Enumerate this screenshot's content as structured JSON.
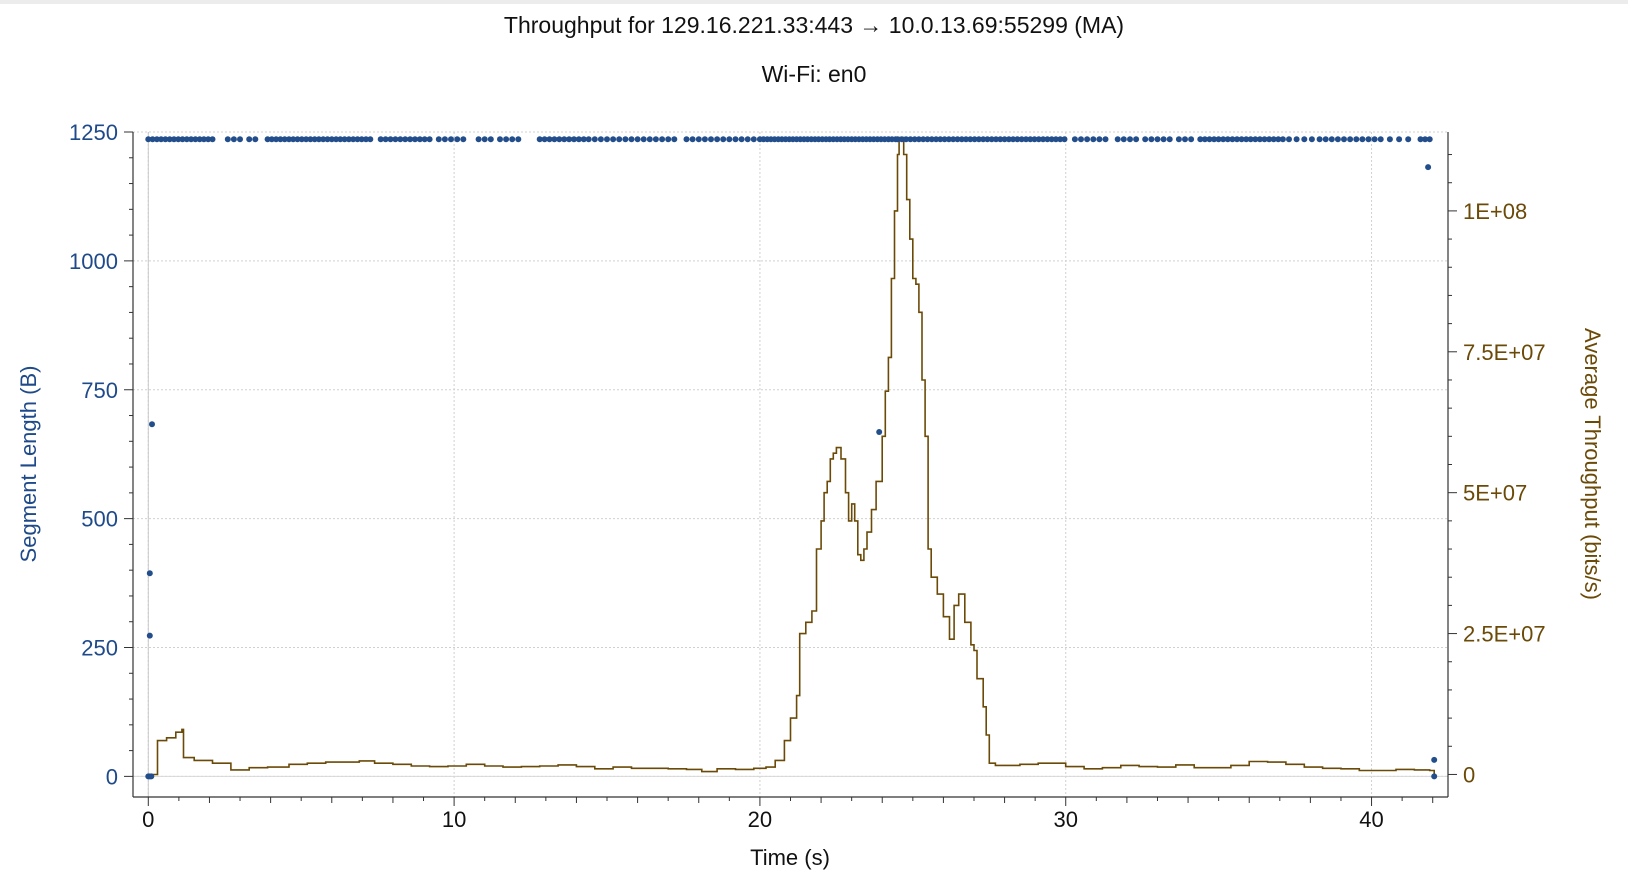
{
  "title": "Throughput for 129.16.221.33:443 → 10.0.13.69:55299 (MA)",
  "subtitle": "Wi-Fi: en0",
  "colors": {
    "segments": "#234e8c",
    "throughput": "#6b4a08",
    "grid": "#d0d0d0",
    "axis": "#333333"
  },
  "chart_data": {
    "type": "scatter+line",
    "xlabel": "Time (s)",
    "ylabel_left": "Segment Length (B)",
    "ylabel_right": "Average Throughput (bits/s)",
    "xlim": [
      -0.5,
      42.5
    ],
    "ylim_left": [
      -40,
      1250
    ],
    "ylim_right": [
      -4000000,
      114000000
    ],
    "x_ticks": [
      0,
      10,
      20,
      30,
      40
    ],
    "y_left_ticks": [
      0,
      250,
      500,
      750,
      1000,
      1250
    ],
    "y_right_ticks": [
      {
        "value": 0,
        "label": "0"
      },
      {
        "value": 25000000,
        "label": "2.5E+07"
      },
      {
        "value": 50000000,
        "label": "5E+07"
      },
      {
        "value": 75000000,
        "label": "7.5E+07"
      },
      {
        "value": 100000000,
        "label": "1E+08"
      }
    ],
    "grid": true,
    "segments": {
      "name": "Segment Length",
      "full_size": 1236,
      "full_size_ranges": [
        [
          0.0,
          2.1,
          0.14
        ],
        [
          2.6,
          3.0,
          0.2
        ],
        [
          3.3,
          3.6,
          0.2
        ],
        [
          3.9,
          7.3,
          0.14
        ],
        [
          7.6,
          9.2,
          0.16
        ],
        [
          9.5,
          10.3,
          0.2
        ],
        [
          10.8,
          11.2,
          0.2
        ],
        [
          11.5,
          12.2,
          0.2
        ],
        [
          12.8,
          14.4,
          0.16
        ],
        [
          14.6,
          15.6,
          0.2
        ],
        [
          15.8,
          17.3,
          0.2
        ],
        [
          17.6,
          18.6,
          0.2
        ],
        [
          18.8,
          19.8,
          0.2
        ],
        [
          20.0,
          24.5,
          0.12
        ],
        [
          24.5,
          30.0,
          0.14
        ],
        [
          30.3,
          31.4,
          0.2
        ],
        [
          31.7,
          32.4,
          0.2
        ],
        [
          32.6,
          33.4,
          0.2
        ],
        [
          33.7,
          34.1,
          0.2
        ],
        [
          34.4,
          37.1,
          0.15
        ],
        [
          37.3,
          38.3,
          0.25
        ],
        [
          38.5,
          40.4,
          0.2
        ],
        [
          40.6,
          41.2,
          0.3
        ],
        [
          41.6,
          41.9,
          0.15
        ]
      ],
      "points": [
        {
          "x": 0.0,
          "y": 0
        },
        {
          "x": 0.05,
          "y": 0
        },
        {
          "x": 0.1,
          "y": 0
        },
        {
          "x": 0.05,
          "y": 394
        },
        {
          "x": 0.05,
          "y": 273
        },
        {
          "x": 0.12,
          "y": 683
        },
        {
          "x": 23.9,
          "y": 668
        },
        {
          "x": 41.85,
          "y": 1182
        },
        {
          "x": 42.05,
          "y": 32
        },
        {
          "x": 42.05,
          "y": 0
        }
      ]
    },
    "throughput": {
      "name": "Average Throughput",
      "points": [
        [
          0.0,
          0
        ],
        [
          0.2,
          0
        ],
        [
          0.3,
          6000000
        ],
        [
          0.6,
          6500000
        ],
        [
          0.9,
          7500000
        ],
        [
          1.1,
          8000000
        ],
        [
          1.15,
          3000000
        ],
        [
          1.5,
          2500000
        ],
        [
          1.8,
          2500000
        ],
        [
          2.1,
          2000000
        ],
        [
          2.4,
          2000000
        ],
        [
          2.7,
          800000
        ],
        [
          3.0,
          800000
        ],
        [
          3.3,
          1200000
        ],
        [
          3.9,
          1300000
        ],
        [
          4.6,
          1800000
        ],
        [
          5.2,
          2000000
        ],
        [
          5.8,
          2200000
        ],
        [
          6.4,
          2200000
        ],
        [
          6.9,
          2400000
        ],
        [
          7.4,
          2000000
        ],
        [
          8.0,
          1800000
        ],
        [
          8.6,
          1500000
        ],
        [
          9.2,
          1400000
        ],
        [
          9.8,
          1500000
        ],
        [
          10.4,
          1800000
        ],
        [
          11.0,
          1500000
        ],
        [
          11.6,
          1300000
        ],
        [
          12.2,
          1400000
        ],
        [
          12.8,
          1500000
        ],
        [
          13.4,
          1700000
        ],
        [
          14.0,
          1400000
        ],
        [
          14.6,
          1000000
        ],
        [
          15.2,
          1300000
        ],
        [
          15.8,
          1100000
        ],
        [
          16.4,
          1100000
        ],
        [
          17.0,
          1000000
        ],
        [
          17.6,
          900000
        ],
        [
          18.1,
          500000
        ],
        [
          18.6,
          1000000
        ],
        [
          19.2,
          900000
        ],
        [
          19.8,
          1100000
        ],
        [
          20.2,
          1300000
        ],
        [
          20.5,
          2500000
        ],
        [
          20.8,
          6000000
        ],
        [
          21.0,
          10000000
        ],
        [
          21.2,
          14000000
        ],
        [
          21.3,
          25000000
        ],
        [
          21.5,
          27000000
        ],
        [
          21.7,
          29000000
        ],
        [
          21.85,
          40000000
        ],
        [
          22.0,
          45000000
        ],
        [
          22.1,
          50000000
        ],
        [
          22.2,
          52000000
        ],
        [
          22.3,
          56000000
        ],
        [
          22.4,
          57000000
        ],
        [
          22.5,
          58000000
        ],
        [
          22.65,
          56000000
        ],
        [
          22.8,
          50000000
        ],
        [
          22.9,
          45000000
        ],
        [
          23.0,
          48000000
        ],
        [
          23.1,
          45000000
        ],
        [
          23.2,
          39000000
        ],
        [
          23.3,
          38000000
        ],
        [
          23.4,
          40000000
        ],
        [
          23.5,
          43000000
        ],
        [
          23.65,
          47000000
        ],
        [
          23.8,
          52000000
        ],
        [
          24.0,
          60000000
        ],
        [
          24.1,
          68000000
        ],
        [
          24.2,
          74000000
        ],
        [
          24.3,
          88000000
        ],
        [
          24.4,
          100000000
        ],
        [
          24.5,
          110000000
        ],
        [
          24.55,
          113000000
        ],
        [
          24.7,
          110000000
        ],
        [
          24.8,
          102000000
        ],
        [
          24.9,
          95000000
        ],
        [
          25.0,
          88000000
        ],
        [
          25.1,
          87000000
        ],
        [
          25.2,
          82000000
        ],
        [
          25.3,
          70000000
        ],
        [
          25.4,
          60000000
        ],
        [
          25.5,
          40000000
        ],
        [
          25.6,
          35000000
        ],
        [
          25.8,
          32000000
        ],
        [
          26.0,
          28000000
        ],
        [
          26.2,
          24000000
        ],
        [
          26.35,
          30000000
        ],
        [
          26.5,
          32000000
        ],
        [
          26.7,
          27000000
        ],
        [
          26.9,
          23000000
        ],
        [
          27.0,
          22000000
        ],
        [
          27.1,
          17000000
        ],
        [
          27.3,
          12000000
        ],
        [
          27.4,
          7000000
        ],
        [
          27.5,
          2000000
        ],
        [
          27.7,
          1600000
        ],
        [
          28.5,
          1800000
        ],
        [
          29.1,
          2000000
        ],
        [
          29.6,
          2000000
        ],
        [
          30.0,
          1400000
        ],
        [
          30.6,
          1000000
        ],
        [
          31.2,
          1200000
        ],
        [
          31.8,
          1600000
        ],
        [
          32.4,
          1400000
        ],
        [
          33.0,
          1300000
        ],
        [
          33.6,
          1700000
        ],
        [
          34.2,
          1200000
        ],
        [
          34.8,
          1200000
        ],
        [
          35.4,
          1600000
        ],
        [
          36.0,
          2300000
        ],
        [
          36.6,
          2200000
        ],
        [
          37.2,
          1800000
        ],
        [
          37.8,
          1300000
        ],
        [
          38.4,
          1100000
        ],
        [
          39.0,
          1000000
        ],
        [
          39.6,
          700000
        ],
        [
          40.2,
          700000
        ],
        [
          40.8,
          900000
        ],
        [
          41.4,
          800000
        ],
        [
          41.9,
          700000
        ],
        [
          42.05,
          0
        ]
      ]
    }
  }
}
